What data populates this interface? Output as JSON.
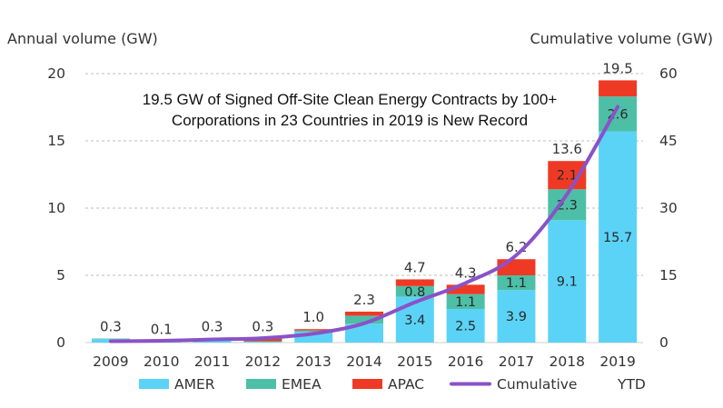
{
  "chart_data": {
    "type": "bar",
    "stacked": true,
    "title_lines": [
      "19.5 GW of Signed Off-Site Clean Energy Contracts by 100+",
      "Corporations in 23 Countries in 2019 is New Record"
    ],
    "ylabel_left": "Annual volume (GW)",
    "ylabel_right": "Cumulative volume (GW)",
    "ylim_left": [
      0,
      20
    ],
    "ylim_right": [
      0,
      60
    ],
    "yticks_left": [
      "0",
      "5",
      "10",
      "15",
      "20"
    ],
    "yticks_right": [
      "0",
      "15",
      "30",
      "45",
      "60"
    ],
    "grid": "horizontal dashed",
    "legend_placement": "bottom",
    "categories": [
      "2009",
      "2010",
      "2011",
      "2012",
      "2013",
      "2014",
      "2015",
      "2016",
      "2017",
      "2018",
      "2019"
    ],
    "series": [
      {
        "name": "AMER",
        "color": "#5BD3F7",
        "values": [
          0.25,
          0.1,
          0.25,
          0.05,
          0.8,
          1.4,
          3.4,
          2.5,
          3.9,
          9.1,
          15.7
        ]
      },
      {
        "name": "EMEA",
        "color": "#4DBFA6",
        "values": [
          0.05,
          0.0,
          0.05,
          0.05,
          0.1,
          0.6,
          0.8,
          1.1,
          1.1,
          2.3,
          2.6
        ]
      },
      {
        "name": "APAC",
        "color": "#EE3A24",
        "values": [
          0.0,
          0.0,
          0.0,
          0.2,
          0.1,
          0.3,
          0.5,
          0.7,
          1.2,
          2.1,
          1.2
        ]
      }
    ],
    "totals": [
      "0.3",
      "0.1",
      "0.3",
      "0.3",
      "1.0",
      "2.3",
      "4.7",
      "4.3",
      "6.2",
      "13.6",
      "19.5"
    ],
    "inner_labels": [
      {
        "category": "2015",
        "series": "AMER",
        "label": "3.4"
      },
      {
        "category": "2015",
        "series": "EMEA",
        "label": "0.8"
      },
      {
        "category": "2016",
        "series": "AMER",
        "label": "2.5"
      },
      {
        "category": "2016",
        "series": "EMEA",
        "label": "1.1"
      },
      {
        "category": "2017",
        "series": "AMER",
        "label": "3.9"
      },
      {
        "category": "2017",
        "series": "EMEA",
        "label": "1.1"
      },
      {
        "category": "2018",
        "series": "AMER",
        "label": "9.1"
      },
      {
        "category": "2018",
        "series": "EMEA",
        "label": "2.3"
      },
      {
        "category": "2018",
        "series": "APAC",
        "label": "2.1"
      },
      {
        "category": "2019",
        "series": "AMER",
        "label": "15.7"
      },
      {
        "category": "2019",
        "series": "EMEA",
        "label": "2.6"
      }
    ],
    "line": {
      "name": "Cumulative",
      "color": "#8A52C8",
      "axis": "right",
      "values": [
        0.3,
        0.4,
        0.7,
        1.0,
        2.0,
        4.3,
        9.0,
        13.3,
        19.5,
        33.1,
        52.6
      ]
    },
    "legend": [
      {
        "label": "AMER",
        "kind": "bar",
        "color": "#5BD3F7"
      },
      {
        "label": "EMEA",
        "kind": "bar",
        "color": "#4DBFA6"
      },
      {
        "label": "APAC",
        "kind": "bar",
        "color": "#EE3A24"
      },
      {
        "label": "Cumulative",
        "kind": "line",
        "color": "#8A52C8"
      },
      {
        "label": "YTD",
        "kind": "text",
        "color": ""
      }
    ]
  }
}
